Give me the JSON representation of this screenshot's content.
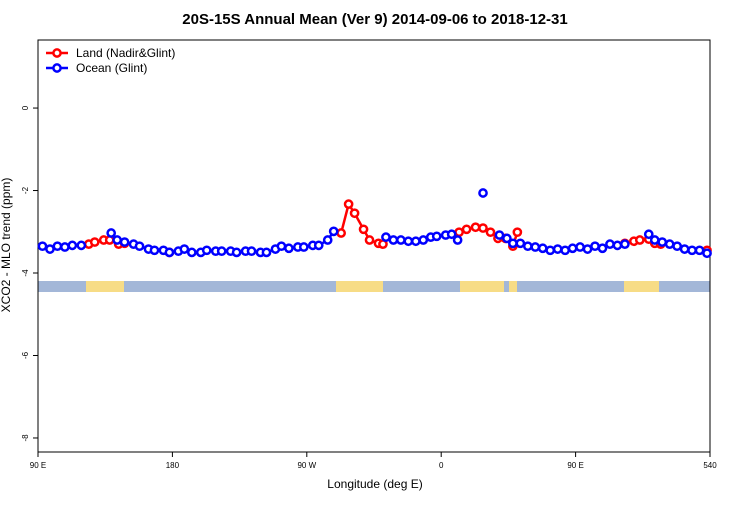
{
  "chart_data": {
    "type": "line",
    "title": "20S-15S Annual Mean (Ver 9)   2014-09-06 to 2018-12-31",
    "x_label": "Longitude (deg E)",
    "y_label": "XCO2 - MLO trend (ppm)",
    "xlim": [
      90,
      540
    ],
    "ylim": [
      -8.34,
      1.65
    ],
    "xticks": [
      {
        "value": 90,
        "label": "90 E"
      },
      180,
      {
        "value": 270,
        "label": "90 W"
      },
      {
        "value": 360,
        "label": "0"
      },
      {
        "value": 450,
        "label": "90 E"
      },
      540
    ],
    "yticks": [
      -8,
      -6,
      -4,
      -2,
      0
    ],
    "legend": "top-left",
    "series": [
      {
        "name": "Land (Nadir&Glint)",
        "color": "#ff0000",
        "x": [
          124,
          128,
          134,
          138,
          144,
          148,
          160,
          178,
          250,
          293,
          298,
          302,
          308,
          312,
          318,
          321,
          340,
          372,
          377,
          383,
          388,
          393,
          398,
          403,
          408,
          411,
          450,
          483,
          489,
          493,
          499,
          503,
          507,
          520,
          538
        ],
        "values": [
          -3.3,
          -3.25,
          -3.2,
          -3.2,
          -3.3,
          -3.28,
          null,
          -3.5,
          null,
          -3.03,
          -2.33,
          -2.55,
          -2.94,
          -3.2,
          -3.28,
          -3.3,
          null,
          -3.01,
          -2.94,
          -2.89,
          -2.91,
          -3.01,
          -3.16,
          -3.16,
          -3.35,
          -3.01,
          null,
          -3.28,
          -3.23,
          -3.2,
          -3.18,
          -3.28,
          -3.3,
          null,
          -3.45
        ]
      },
      {
        "name": "Ocean (Glint)",
        "color": "#0000ff",
        "x": [
          93,
          98,
          103,
          108,
          113,
          119,
          128,
          139,
          143,
          148,
          154,
          158,
          164,
          168,
          174,
          178,
          184,
          188,
          193,
          199,
          203,
          209,
          213,
          219,
          223,
          229,
          233,
          239,
          243,
          249,
          253,
          258,
          264,
          268,
          274,
          278,
          284,
          288,
          300,
          323,
          328,
          333,
          338,
          343,
          348,
          353,
          357,
          363,
          367,
          371,
          380,
          388,
          394,
          399,
          404,
          408,
          413,
          418,
          423,
          428,
          433,
          438,
          443,
          448,
          453,
          458,
          463,
          468,
          473,
          478,
          483,
          490,
          499,
          503,
          508,
          513,
          518,
          523,
          528,
          533,
          538
        ],
        "values": [
          -3.35,
          -3.42,
          -3.35,
          -3.37,
          -3.33,
          -3.33,
          null,
          -3.03,
          -3.2,
          -3.25,
          -3.3,
          -3.35,
          -3.42,
          -3.45,
          -3.45,
          -3.5,
          -3.47,
          -3.42,
          -3.5,
          -3.5,
          -3.45,
          -3.47,
          -3.47,
          -3.47,
          -3.5,
          -3.47,
          -3.47,
          -3.5,
          -3.5,
          -3.42,
          -3.35,
          -3.4,
          -3.37,
          -3.37,
          -3.33,
          -3.33,
          -3.2,
          -2.99,
          null,
          -3.13,
          -3.2,
          -3.2,
          -3.23,
          -3.23,
          -3.2,
          -3.13,
          -3.11,
          -3.08,
          -3.06,
          -3.2,
          null,
          -2.06,
          null,
          -3.08,
          -3.16,
          -3.28,
          -3.28,
          -3.35,
          -3.37,
          -3.4,
          -3.45,
          -3.42,
          -3.45,
          -3.4,
          -3.37,
          -3.42,
          -3.35,
          -3.4,
          -3.3,
          -3.33,
          -3.3,
          null,
          -3.06,
          -3.2,
          -3.25,
          -3.3,
          -3.35,
          -3.42,
          -3.45,
          -3.45,
          -3.52
        ]
      }
    ]
  }
}
